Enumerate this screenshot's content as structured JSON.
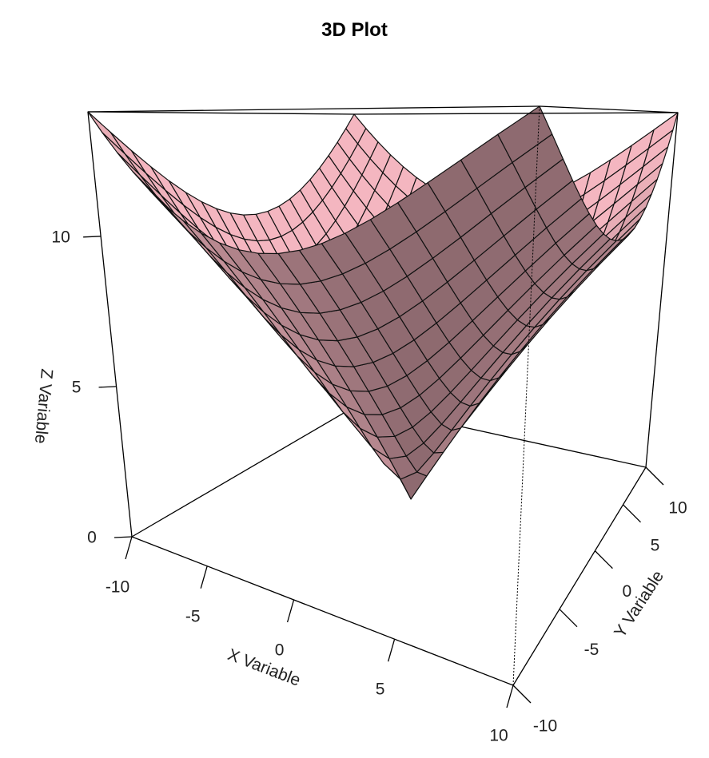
{
  "chart_data": {
    "type": "surface3d",
    "title": "3D Plot",
    "function": "z = sqrt(x^2 + y^2)",
    "xlabel": "X Variable",
    "ylabel": "Y Variable",
    "zlabel": "Z Variable",
    "x": [
      -10,
      -9,
      -8,
      -7,
      -6,
      -5,
      -4,
      -3,
      -2,
      -1,
      0,
      1,
      2,
      3,
      4,
      5,
      6,
      7,
      8,
      9,
      10
    ],
    "y": [
      -10,
      -9,
      -8,
      -7,
      -6,
      -5,
      -4,
      -3,
      -2,
      -1,
      0,
      1,
      2,
      3,
      4,
      5,
      6,
      7,
      8,
      9,
      10
    ],
    "xlim": [
      -10,
      10
    ],
    "ylim": [
      -10,
      10
    ],
    "zlim": [
      0,
      14.142
    ],
    "x_ticks": [
      -10,
      -5,
      0,
      5,
      10
    ],
    "y_ticks": [
      -10,
      -5,
      0,
      5,
      10
    ],
    "z_ticks": [
      0,
      5,
      10
    ],
    "surface_color": "#f4b6c0",
    "shade_dark_color": "#5e4549",
    "grid_line_color": "#000000",
    "box": true
  },
  "labels": {
    "title": "3D Plot",
    "x_axis": "X Variable",
    "y_axis": "Y Variable",
    "z_axis": "Z Variable"
  }
}
